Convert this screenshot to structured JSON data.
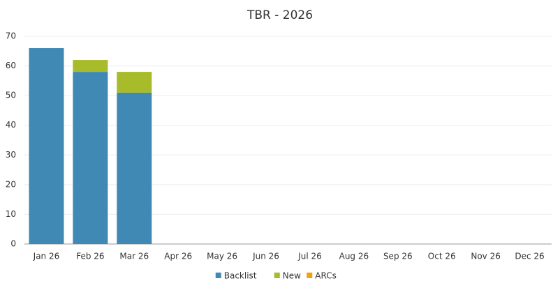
{
  "chart_data": {
    "type": "stacked_bar",
    "title": "TBR - 2026",
    "categories": [
      "Jan 26",
      "Feb 26",
      "Mar 26",
      "Apr 26",
      "May 26",
      "Jun 26",
      "Jul 26",
      "Aug 26",
      "Sep 26",
      "Oct 26",
      "Nov 26",
      "Dec 26"
    ],
    "series": [
      {
        "name": "Backlist",
        "color": "#4189b5",
        "values": [
          66,
          58,
          51,
          null,
          null,
          null,
          null,
          null,
          null,
          null,
          null,
          null
        ]
      },
      {
        "name": "New",
        "color": "#a8bb2a",
        "values": [
          0,
          4,
          7,
          null,
          null,
          null,
          null,
          null,
          null,
          null,
          null,
          null
        ]
      },
      {
        "name": "ARCs",
        "color": "#f0a30a",
        "values": [
          0,
          0,
          0,
          null,
          null,
          null,
          null,
          null,
          null,
          null,
          null,
          null
        ]
      }
    ],
    "ylim": [
      0,
      70
    ],
    "yticks": [
      0,
      10,
      20,
      30,
      40,
      50,
      60,
      70
    ],
    "grid": true,
    "legend": "bottom"
  }
}
